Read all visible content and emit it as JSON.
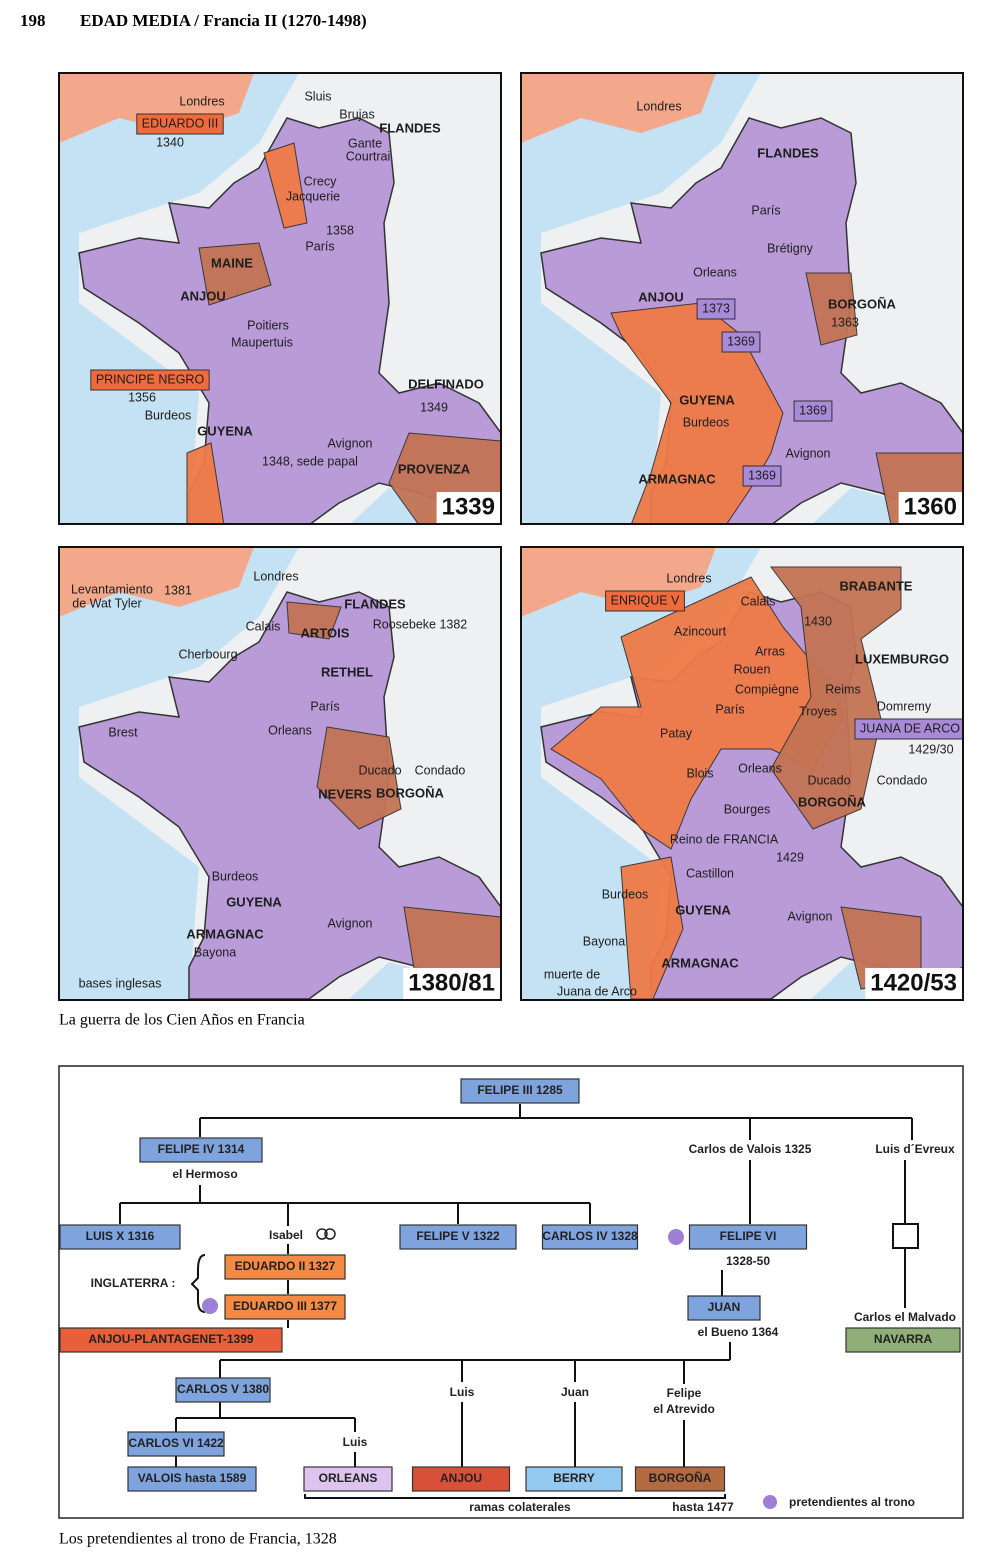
{
  "header": {
    "page": "198",
    "title": "EDAD MEDIA / Francia II (1270-1498)"
  },
  "maps": [
    {
      "year": "1339",
      "labels": [
        "Londres",
        "EDUARDO III",
        "1340",
        "Sluis",
        "Brujas",
        "FLANDES",
        "Gante",
        "Courtrai",
        "Crecy",
        "Jacquerie",
        "1358",
        "París",
        "MAINE",
        "ANJOU",
        "Poitiers",
        "Maupertuis",
        "PRINCIPE NEGRO",
        "1356",
        "Burdeos",
        "GUYENA",
        "DELFINADO",
        "1349",
        "Avignon",
        "1348, sede papal",
        "PROVENZA"
      ]
    },
    {
      "year": "1360",
      "labels": [
        "Londres",
        "FLANDES",
        "París",
        "Brétigny",
        "Orleans",
        "ANJOU",
        "1373",
        "1369",
        "BORGOÑA",
        "1363",
        "GUYENA",
        "Burdeos",
        "1369",
        "Avignon",
        "ARMAGNAC",
        "1369"
      ]
    },
    {
      "year": "1380/81",
      "labels": [
        "Levantamiento",
        "de Wat Tyler",
        "1381",
        "Londres",
        "FLANDES",
        "Calais",
        "ARTOIS",
        "Roosebeke 1382",
        "Cherbourg",
        "RETHEL",
        "Brest",
        "París",
        "Orleans",
        "Ducado",
        "Condado",
        "NEVERS",
        "BORGOÑA",
        "Burdeos",
        "GUYENA",
        "ARMAGNAC",
        "Bayona",
        "Avignon",
        "bases inglesas"
      ]
    },
    {
      "year": "1420/53",
      "labels": [
        "Londres",
        "ENRIQUE V",
        "BRABANTE",
        "Calais",
        "1430",
        "Azincourt",
        "Arras",
        "Rouen",
        "LUXEMBURGO",
        "Compiègne",
        "Reims",
        "Domremy",
        "París",
        "Troyes",
        "JUANA DE ARCO",
        "Patay",
        "1429/30",
        "Orleans",
        "Blois",
        "Ducado",
        "Condado",
        "Bourges",
        "BORGOÑA",
        "Reino de FRANCIA",
        "1429",
        "Castillon",
        "Burdeos",
        "GUYENA",
        "Avignon",
        "Bayona",
        "ARMAGNAC",
        "muerte de",
        "Juana de Arco"
      ]
    }
  ],
  "maps_caption": "La guerra de los Cien Años en Francia",
  "tree": {
    "labels": [
      "FELIPE III 1285",
      "FELIPE IV 1314",
      "el Hermoso",
      "Carlos de Valois 1325",
      "Luis d´Evreux",
      "LUIS X 1316",
      "Isabel",
      "FELIPE V 1322",
      "CARLOS IV 1328",
      "FELIPE VI",
      "1328-50",
      "INGLATERRA :",
      "EDUARDO II 1327",
      "EDUARDO III 1377",
      "ANJOU-PLANTAGENET-1399",
      "JUAN",
      "el Bueno 1364",
      "Carlos el Malvado",
      "NAVARRA",
      "CARLOS V 1380",
      "Luis",
      "Juan",
      "Felipe",
      "el Atrevido",
      "CARLOS VI 1422",
      "Luis",
      "VALOIS hasta 1589",
      "ORLEANS",
      "ANJOU",
      "BERRY",
      "BORGOÑA",
      "ramas colaterales",
      "hasta 1477",
      "pretendientes al trono"
    ]
  },
  "tree_caption": "Los pretendientes al trono de Francia, 1328"
}
